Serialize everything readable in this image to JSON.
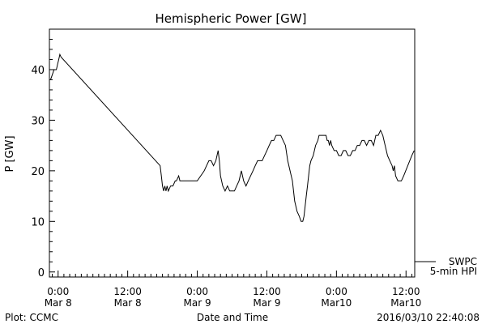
{
  "chart_data": {
    "type": "line",
    "title": "Hemispheric Power [GW]",
    "xlabel": "Date and Time",
    "ylabel": "P [GW]",
    "xlim_hours": [
      -1.5,
      61.5
    ],
    "ylim": [
      -1,
      48
    ],
    "y_ticks": [
      0,
      10,
      20,
      30,
      40
    ],
    "x_ticks": [
      {
        "h": 0,
        "l1": "0:00",
        "l2": "Mar 8"
      },
      {
        "h": 12,
        "l1": "12:00",
        "l2": "Mar 8"
      },
      {
        "h": 24,
        "l1": "0:00",
        "l2": "Mar 9"
      },
      {
        "h": 36,
        "l1": "12:00",
        "l2": "Mar 9"
      },
      {
        "h": 48,
        "l1": "0:00",
        "l2": "Mar10"
      },
      {
        "h": 60,
        "l1": "12:00",
        "l2": "Mar10"
      }
    ],
    "series": [
      {
        "name": "SWPC",
        "legend_line2": "5-min HPI",
        "color": "#000000",
        "points": [
          [
            -1.3,
            38
          ],
          [
            -1.0,
            39
          ],
          [
            -0.7,
            40
          ],
          [
            -0.3,
            40
          ],
          [
            -0.1,
            41
          ],
          [
            0.1,
            42
          ],
          [
            0.3,
            43
          ],
          [
            0.5,
            42.5
          ],
          [
            17.6,
            21
          ],
          [
            17.8,
            19
          ],
          [
            18.0,
            17
          ],
          [
            18.2,
            16
          ],
          [
            18.4,
            17
          ],
          [
            18.6,
            16
          ],
          [
            18.8,
            17
          ],
          [
            19.0,
            16
          ],
          [
            19.4,
            17
          ],
          [
            19.8,
            17
          ],
          [
            20.2,
            18
          ],
          [
            20.4,
            18
          ],
          [
            20.8,
            19
          ],
          [
            21.0,
            18
          ],
          [
            22.0,
            18
          ],
          [
            23.0,
            18
          ],
          [
            24.0,
            18
          ],
          [
            24.6,
            19
          ],
          [
            25.2,
            20
          ],
          [
            25.6,
            21
          ],
          [
            26.0,
            22
          ],
          [
            26.4,
            22
          ],
          [
            26.8,
            21
          ],
          [
            27.2,
            22
          ],
          [
            27.4,
            23
          ],
          [
            27.6,
            24
          ],
          [
            27.8,
            22
          ],
          [
            28.0,
            19
          ],
          [
            28.4,
            17
          ],
          [
            28.8,
            16
          ],
          [
            29.2,
            17
          ],
          [
            29.6,
            16
          ],
          [
            30.0,
            16
          ],
          [
            30.4,
            16
          ],
          [
            30.8,
            17
          ],
          [
            31.2,
            18
          ],
          [
            31.6,
            20
          ],
          [
            32.0,
            18
          ],
          [
            32.4,
            17
          ],
          [
            32.8,
            18
          ],
          [
            33.2,
            19
          ],
          [
            33.6,
            20
          ],
          [
            34.0,
            21
          ],
          [
            34.4,
            22
          ],
          [
            34.8,
            22
          ],
          [
            35.2,
            22
          ],
          [
            35.6,
            23
          ],
          [
            36.0,
            24
          ],
          [
            36.4,
            25
          ],
          [
            36.8,
            26
          ],
          [
            37.2,
            26
          ],
          [
            37.6,
            27
          ],
          [
            38.0,
            27
          ],
          [
            38.4,
            27
          ],
          [
            38.8,
            26
          ],
          [
            39.2,
            25
          ],
          [
            39.6,
            22
          ],
          [
            40.0,
            20
          ],
          [
            40.4,
            18
          ],
          [
            40.8,
            14
          ],
          [
            41.2,
            12
          ],
          [
            41.6,
            11
          ],
          [
            41.9,
            10
          ],
          [
            42.2,
            10
          ],
          [
            42.4,
            11
          ],
          [
            42.6,
            13
          ],
          [
            42.8,
            15
          ],
          [
            43.0,
            17
          ],
          [
            43.2,
            19
          ],
          [
            43.4,
            21
          ],
          [
            43.6,
            22
          ],
          [
            44.0,
            23
          ],
          [
            44.4,
            25
          ],
          [
            44.8,
            26
          ],
          [
            45.0,
            27
          ],
          [
            45.6,
            27
          ],
          [
            46.2,
            27
          ],
          [
            46.4,
            26
          ],
          [
            46.6,
            26
          ],
          [
            46.8,
            25
          ],
          [
            47.0,
            26
          ],
          [
            47.2,
            25
          ],
          [
            47.6,
            24
          ],
          [
            48.0,
            24
          ],
          [
            48.4,
            23
          ],
          [
            48.8,
            23
          ],
          [
            49.2,
            24
          ],
          [
            49.6,
            24
          ],
          [
            50.0,
            23
          ],
          [
            50.4,
            23
          ],
          [
            50.8,
            24
          ],
          [
            51.2,
            24
          ],
          [
            51.6,
            25
          ],
          [
            52.0,
            25
          ],
          [
            52.4,
            26
          ],
          [
            52.8,
            26
          ],
          [
            53.2,
            25
          ],
          [
            53.6,
            26
          ],
          [
            54.0,
            26
          ],
          [
            54.4,
            25
          ],
          [
            54.8,
            27
          ],
          [
            55.2,
            27
          ],
          [
            55.6,
            28
          ],
          [
            56.0,
            27
          ],
          [
            56.4,
            25
          ],
          [
            56.8,
            23
          ],
          [
            57.2,
            22
          ],
          [
            57.6,
            21
          ],
          [
            57.8,
            20
          ],
          [
            58.0,
            21
          ],
          [
            58.2,
            19
          ],
          [
            58.6,
            18
          ],
          [
            59.2,
            18
          ],
          [
            59.6,
            19
          ],
          [
            61.0,
            23
          ],
          [
            61.4,
            24
          ]
        ]
      }
    ]
  },
  "footer": {
    "left": "Plot: CCMC",
    "right": "2016/03/10 22:40:08"
  }
}
